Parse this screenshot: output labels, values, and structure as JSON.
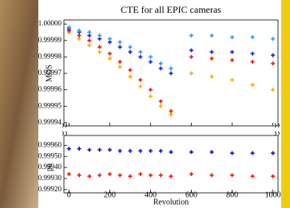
{
  "chart_data": [
    {
      "type": "scatter",
      "title": "CTE for all EPIC cameras",
      "y_label": "MOS",
      "x": [
        0,
        50,
        100,
        150,
        200,
        250,
        300,
        350,
        400,
        450,
        500,
        600,
        700,
        800,
        900,
        1000
      ],
      "xlim": [
        -25,
        1025
      ],
      "xticks": [
        0,
        200,
        400,
        600,
        800,
        1000
      ],
      "ylim": [
        0.999938,
        1.0000025
      ],
      "yticks": [
        {
          "value": 1,
          "label": "1.00000"
        },
        0.99999,
        0.99998,
        0.99997,
        0.99996,
        0.99995,
        0.99994
      ],
      "series": [
        {
          "color": "#ffaa00",
          "values": [
            0.999995,
            0.999991,
            0.999987,
            0.999983,
            0.999979,
            0.999974,
            0.999968,
            0.999962,
            0.999956,
            0.99995,
            0.999945,
            0.99997,
            0.999968,
            0.999966,
            0.999963,
            0.99996
          ]
        },
        {
          "color": "#ee1c00",
          "values": [
            0.999996,
            0.999993,
            0.99999,
            0.999986,
            0.999982,
            0.999977,
            0.999972,
            0.999966,
            0.99996,
            0.999953,
            0.999947,
            0.99998,
            0.999979,
            0.999978,
            0.999977,
            0.999976
          ]
        },
        {
          "color": "#2020dd",
          "values": [
            0.999997,
            0.999995,
            0.999993,
            0.999991,
            0.999989,
            0.999986,
            0.999983,
            0.99998,
            0.999977,
            0.999973,
            0.99997,
            0.999984,
            0.999983,
            0.999983,
            0.999982,
            0.999981
          ]
        },
        {
          "color": "#2a9cf0",
          "values": [
            0.999998,
            0.999996,
            0.999995,
            0.999993,
            0.999991,
            0.999989,
            0.999986,
            0.999983,
            0.99998,
            0.999976,
            0.999973,
            0.999993,
            0.999993,
            0.999992,
            0.999992,
            0.999991
          ]
        }
      ]
    },
    {
      "type": "scatter",
      "x_label": "Revolution",
      "y_label": "pn",
      "x": [
        0,
        50,
        100,
        150,
        200,
        250,
        300,
        350,
        400,
        450,
        500,
        600,
        700,
        800,
        900,
        1000
      ],
      "xlim": [
        -25,
        1025
      ],
      "xticks": [
        0,
        200,
        400,
        600,
        800,
        1000
      ],
      "ylim": [
        0.99917,
        0.99969
      ],
      "yticks": [
        {
          "value": 0.9996,
          "label": "0.99960"
        },
        {
          "value": 0.9995,
          "label": "0.99950"
        },
        {
          "value": 0.9994,
          "label": "0.99940"
        },
        {
          "value": 0.9993,
          "label": "0.99930"
        },
        {
          "value": 0.9992,
          "label": "0.99920"
        }
      ],
      "series": [
        {
          "color": "#1010cc",
          "values": [
            0.99957,
            0.99957,
            0.99956,
            0.99956,
            0.99956,
            0.99955,
            0.99955,
            0.99955,
            0.99955,
            0.99955,
            0.99954,
            0.99954,
            0.99954,
            0.99953,
            0.99953,
            0.99953
          ]
        },
        {
          "color": "#ee1c00",
          "values": [
            0.99934,
            0.99933,
            0.99932,
            0.99933,
            0.99934,
            0.99933,
            0.99932,
            0.99934,
            0.99933,
            0.99933,
            0.99932,
            0.99934,
            0.99933,
            0.99933,
            0.99932,
            0.99932
          ]
        }
      ]
    }
  ]
}
